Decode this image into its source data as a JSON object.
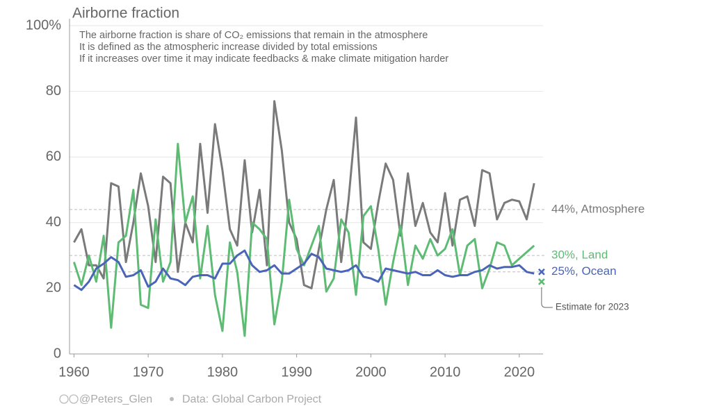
{
  "chart_data": {
    "type": "line",
    "title": "Airborne fraction",
    "subtitle": [
      "The airborne fraction is share of CO₂ emissions that remain in the atmosphere",
      "It is defined as the atmospheric increase divided by total emissions",
      "If it increases over time it may indicate feedbacks & make climate mitigation harder"
    ],
    "x": [
      1960,
      1961,
      1962,
      1963,
      1964,
      1965,
      1966,
      1967,
      1968,
      1969,
      1970,
      1971,
      1972,
      1973,
      1974,
      1975,
      1976,
      1977,
      1978,
      1979,
      1980,
      1981,
      1982,
      1983,
      1984,
      1985,
      1986,
      1987,
      1988,
      1989,
      1990,
      1991,
      1992,
      1993,
      1994,
      1995,
      1996,
      1997,
      1998,
      1999,
      2000,
      2001,
      2002,
      2003,
      2004,
      2005,
      2006,
      2007,
      2008,
      2009,
      2010,
      2011,
      2012,
      2013,
      2014,
      2015,
      2016,
      2017,
      2018,
      2019,
      2020,
      2021,
      2022
    ],
    "series": [
      {
        "name": "44%, Atmosphere",
        "mean": 44,
        "color": "#7a7a7a",
        "values": [
          34,
          38,
          27,
          27,
          23,
          52,
          51,
          28,
          40,
          55,
          45,
          28,
          54,
          52,
          25,
          40,
          34,
          64,
          43,
          70,
          56,
          38,
          33,
          59,
          37,
          50,
          27,
          77,
          62,
          40,
          35,
          21,
          20,
          32,
          44,
          53,
          28,
          47,
          72,
          34,
          32,
          46,
          58,
          53,
          36,
          55,
          39,
          46,
          37,
          34,
          49,
          33,
          47,
          48,
          39,
          56,
          55,
          41,
          46,
          47,
          46.5,
          41,
          52
        ]
      },
      {
        "name": "30%, Land",
        "mean": 30,
        "color": "#5dbb73",
        "estimate": 22,
        "values": [
          28,
          21,
          30,
          22,
          36,
          8,
          34,
          36,
          50,
          15,
          14,
          41,
          22,
          28,
          64,
          40,
          48,
          23,
          39,
          18,
          7,
          34,
          25,
          5.5,
          40,
          38,
          35,
          9,
          22,
          47,
          32,
          27,
          33,
          39,
          19,
          23,
          41,
          37,
          18,
          42,
          45,
          32,
          15,
          28,
          39,
          21,
          33,
          29,
          35,
          30,
          32,
          38,
          24,
          33,
          35,
          20,
          26,
          34,
          33,
          27,
          29,
          31,
          33
        ]
      },
      {
        "name": "25%, Ocean",
        "mean": 25,
        "color": "#4a64b8",
        "estimate": 25,
        "values": [
          21,
          19.5,
          22,
          26,
          27.5,
          29.5,
          28,
          23.5,
          24,
          25.5,
          20.5,
          22,
          26,
          23,
          22.5,
          21,
          23.5,
          24,
          24,
          23,
          27.5,
          27.5,
          30,
          31.5,
          27,
          25,
          25.5,
          27,
          24.5,
          24.5,
          26,
          27.5,
          30.5,
          29.5,
          26,
          25.5,
          25,
          25.5,
          27,
          23.5,
          23,
          22,
          26,
          25.5,
          25,
          24.5,
          25,
          24,
          24,
          25.5,
          24,
          23.5,
          24,
          24,
          25,
          25.5,
          27,
          26,
          26.5,
          26.5,
          27,
          25,
          24.5
        ]
      }
    ],
    "estimate_x": 2023,
    "annotation": "Estimate for 2023",
    "xlim": [
      1959.4,
      2023.2
    ],
    "xticks": [
      1960,
      1970,
      1980,
      1990,
      2000,
      2010,
      2020
    ],
    "ylim": [
      0,
      100
    ],
    "yticks": [
      0,
      20,
      40,
      60,
      80,
      {
        "value": 100,
        "label": "100%"
      }
    ],
    "grid": true,
    "footer": {
      "handle": "@Peters_Glen",
      "source": "Data: Global Carbon Project"
    }
  }
}
